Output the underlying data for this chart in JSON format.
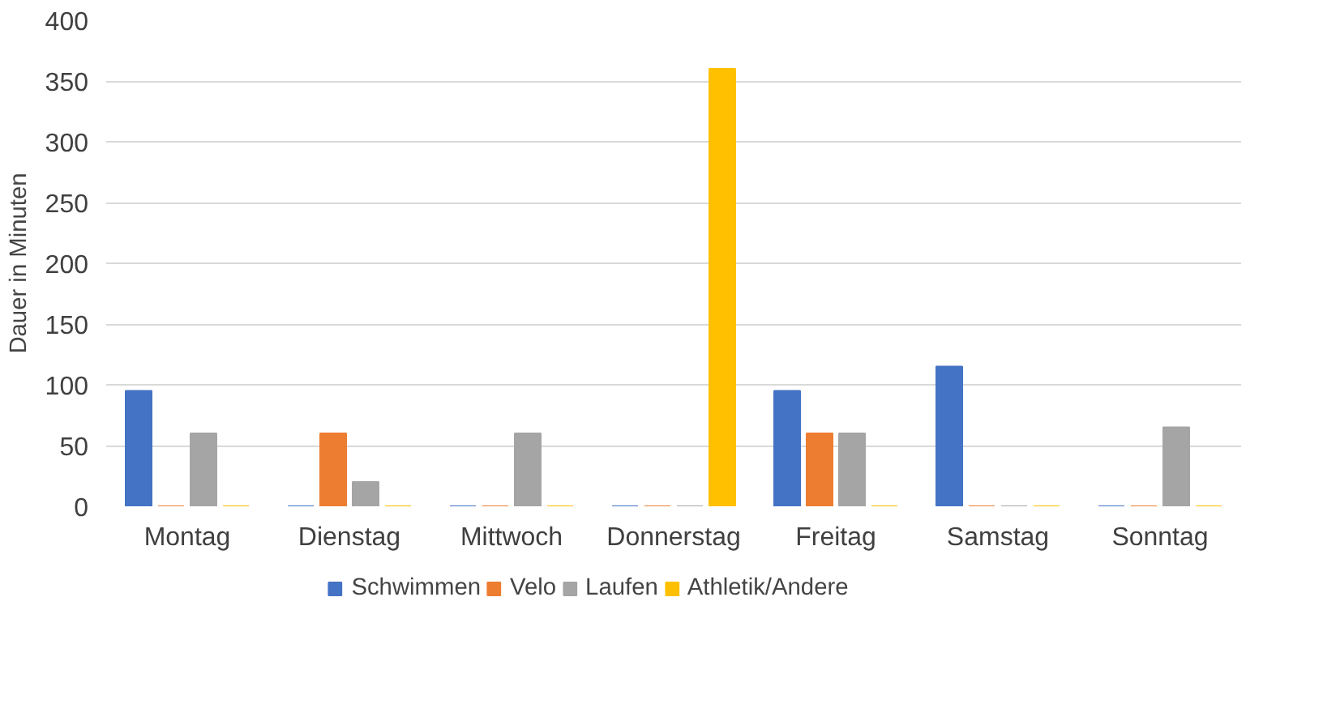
{
  "chart_data": {
    "type": "bar",
    "ylabel": "Dauer in Minuten",
    "categories": [
      "Montag",
      "Dienstag",
      "Mittwoch",
      "Donnerstag",
      "Freitag",
      "Samstag",
      "Sonntag"
    ],
    "series": [
      {
        "name": "Schwimmen",
        "color": "#4472c4",
        "values": [
          95,
          0,
          0,
          0,
          95,
          115,
          0
        ]
      },
      {
        "name": "Velo",
        "color": "#ed7d31",
        "values": [
          0,
          60,
          0,
          0,
          60,
          0,
          0
        ]
      },
      {
        "name": "Laufen",
        "color": "#a5a5a5",
        "values": [
          60,
          20,
          60,
          0,
          60,
          0,
          65
        ]
      },
      {
        "name": "Athletik/Andere",
        "color": "#ffc000",
        "values": [
          0,
          0,
          0,
          360,
          0,
          0,
          0
        ]
      }
    ],
    "ylim": [
      0,
      400
    ],
    "yticks": [
      0,
      50,
      100,
      150,
      200,
      250,
      300,
      350,
      400
    ],
    "grid": "y",
    "legend": "bottom"
  }
}
